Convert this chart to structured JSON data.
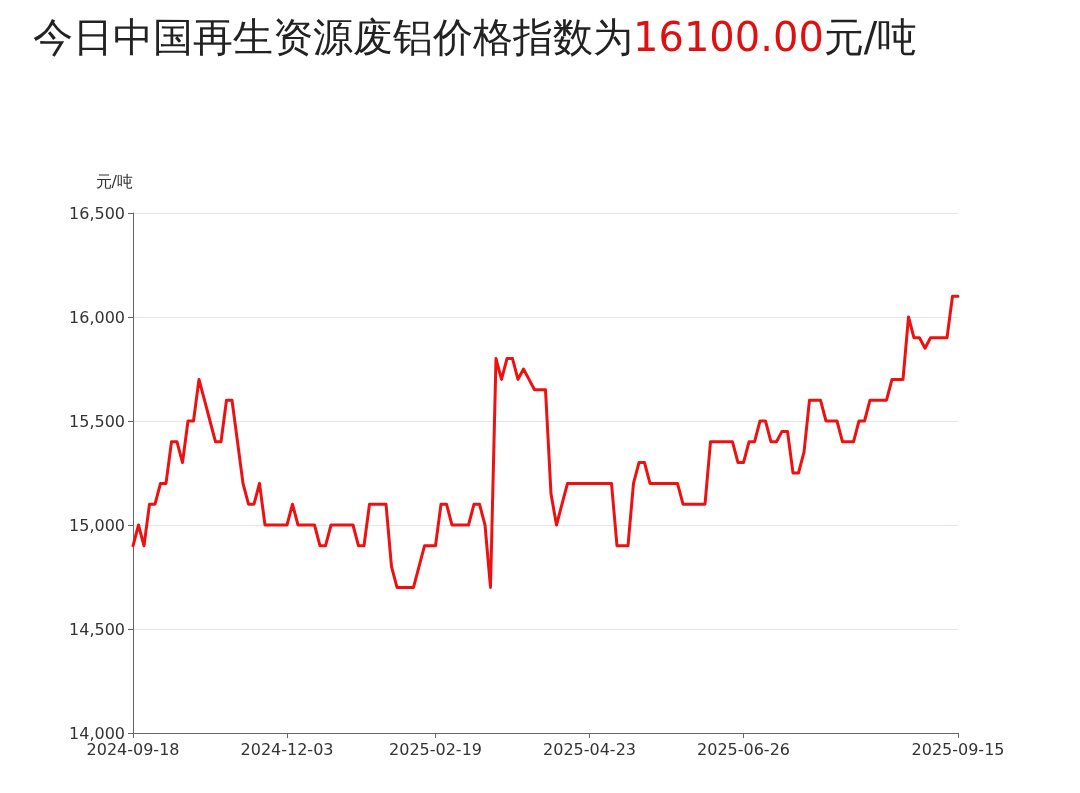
{
  "chart_data": {
    "type": "line",
    "title": "今日中国再生资源废铝价格指数为16100.00元/吨",
    "ylabel": "元/吨",
    "categories": [
      "2024-09-18",
      null,
      null,
      null,
      null,
      null,
      null,
      null,
      null,
      null,
      null,
      null,
      null,
      null,
      null,
      null,
      null,
      null,
      null,
      null,
      null,
      null,
      null,
      null,
      null,
      null,
      null,
      null,
      "2024-12-03",
      null,
      null,
      null,
      null,
      null,
      null,
      null,
      null,
      null,
      null,
      null,
      null,
      null,
      null,
      null,
      null,
      null,
      null,
      null,
      null,
      null,
      null,
      null,
      null,
      null,
      null,
      "2025-02-19",
      null,
      null,
      null,
      null,
      null,
      null,
      null,
      null,
      null,
      null,
      null,
      null,
      null,
      null,
      null,
      null,
      null,
      null,
      null,
      null,
      null,
      null,
      null,
      null,
      null,
      null,
      null,
      "2025-04-23",
      null,
      null,
      null,
      null,
      null,
      null,
      null,
      null,
      null,
      null,
      null,
      null,
      null,
      null,
      null,
      null,
      null,
      null,
      null,
      null,
      null,
      null,
      null,
      null,
      null,
      null,
      null,
      "2025-06-26",
      null,
      null,
      null,
      null,
      null,
      null,
      null,
      null,
      null,
      null,
      null,
      null,
      null,
      null,
      null,
      null,
      null,
      null,
      null,
      null,
      null,
      null,
      null,
      null,
      null,
      null,
      null,
      null,
      null,
      null,
      null,
      null,
      null,
      null,
      null,
      null,
      null,
      null,
      "2025-09-15"
    ],
    "series": [
      {
        "color": "#ee1111",
        "values": [
          14900,
          15000,
          14900,
          15100,
          15100,
          15200,
          15200,
          15400,
          15400,
          15300,
          15500,
          15500,
          15700,
          15600,
          15500,
          15400,
          15400,
          15600,
          15600,
          15400,
          15200,
          15100,
          15100,
          15200,
          15000,
          15000,
          15000,
          15000,
          15000,
          15100,
          15000,
          15000,
          15000,
          15000,
          14900,
          14900,
          15000,
          15000,
          15000,
          15000,
          15000,
          14900,
          14900,
          15100,
          15100,
          15100,
          15100,
          14800,
          14700,
          14700,
          14700,
          14700,
          14800,
          14900,
          14900,
          14900,
          15100,
          15100,
          15000,
          15000,
          15000,
          15000,
          15100,
          15100,
          15000,
          14700,
          15800,
          15700,
          15800,
          15800,
          15700,
          15750,
          15700,
          15650,
          15650,
          15650,
          15150,
          15000,
          15100,
          15200,
          15200,
          15200,
          15200,
          15200,
          15200,
          15200,
          15200,
          15200,
          14900,
          14900,
          14900,
          15200,
          15300,
          15300,
          15200,
          15200,
          15200,
          15200,
          15200,
          15200,
          15100,
          15100,
          15100,
          15100,
          15100,
          15400,
          15400,
          15400,
          15400,
          15400,
          15300,
          15300,
          15400,
          15400,
          15500,
          15500,
          15400,
          15400,
          15450,
          15450,
          15250,
          15250,
          15350,
          15600,
          15600,
          15600,
          15500,
          15500,
          15500,
          15400,
          15400,
          15400,
          15500,
          15500,
          15600,
          15600,
          15600,
          15600,
          15700,
          15700,
          15700,
          16000,
          15900,
          15900,
          15850,
          15900,
          15900,
          15900,
          15900,
          16100,
          16100
        ]
      }
    ],
    "ylim": [
      14000,
      16500
    ],
    "yticks": [
      {
        "value": 14000,
        "label": "14,000"
      },
      {
        "value": 14500,
        "label": "14,500"
      },
      {
        "value": 15000,
        "label": "15,000"
      },
      {
        "value": 15500,
        "label": "15,500"
      },
      {
        "value": 16000,
        "label": "16,000"
      },
      {
        "value": 16500,
        "label": "16,500"
      }
    ],
    "grid": "y",
    "marker": "none",
    "line_style": "solid"
  }
}
